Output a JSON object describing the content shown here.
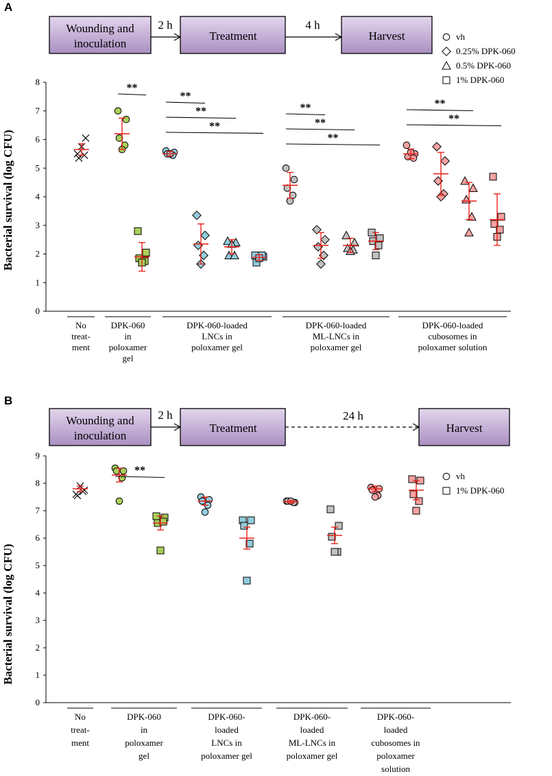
{
  "panels": [
    {
      "letter": "A",
      "workflow": {
        "steps": [
          "Wounding and inoculation",
          "Treatment",
          "Harvest"
        ],
        "intervals": [
          "2 h",
          "4 h"
        ]
      },
      "legend": [
        "vh",
        "0.25% DPK-060",
        "0.5% DPK-060",
        "1% DPK-060"
      ],
      "significance": "**",
      "group_labels": [
        [
          "No",
          "treat-",
          "ment"
        ],
        [
          "DPK-060",
          "in",
          "poloxamer",
          "gel"
        ],
        [
          "DPK-060-loaded",
          "LNCs in",
          "poloxamer gel"
        ],
        [
          "DPK-060-loaded",
          "ML-LNCs in",
          "poloxamer gel"
        ],
        [
          "DPK-060-loaded",
          "cubosomes in",
          "poloxamer solution"
        ]
      ]
    },
    {
      "letter": "B",
      "workflow": {
        "steps": [
          "Wounding and inoculation",
          "Treatment",
          "Harvest"
        ],
        "intervals": [
          "2 h",
          "24 h"
        ]
      },
      "legend": [
        "vh",
        "1% DPK-060"
      ],
      "significance": "**",
      "group_labels": [
        [
          "No",
          "treat-",
          "ment"
        ],
        [
          "DPK-060",
          "in",
          "poloxamer",
          "gel"
        ],
        [
          "DPK-060-",
          "loaded",
          "LNCs in",
          "poloxamer gel"
        ],
        [
          "DPK-060-",
          "loaded",
          "ML-LNCs in",
          "poloxamer gel"
        ],
        [
          "DPK-060-",
          "loaded",
          "cubosomes in",
          "poloxamer",
          "solution"
        ]
      ]
    }
  ],
  "chart_data": [
    {
      "type": "scatter",
      "title": "",
      "ylabel": "Bacterial survival  (log CFU)",
      "ylim": [
        0,
        8
      ],
      "yticks": [
        0,
        1,
        2,
        3,
        4,
        5,
        6,
        7,
        8
      ],
      "series": [
        {
          "name": "No treatment",
          "group": 0,
          "marker": "x",
          "fill": "none",
          "values": [
            5.5,
            6.05,
            5.35,
            5.45,
            5.75
          ],
          "mean": 5.65,
          "sd": 0.2
        },
        {
          "name": "DPK-060 in poloxamer gel / vh",
          "group": 1,
          "marker": "circle",
          "fill": "#a8cf5a",
          "values": [
            7.0,
            6.7,
            6.05,
            5.8,
            5.65
          ],
          "mean": 6.2,
          "sd": 0.55
        },
        {
          "name": "DPK-060 in poloxamer gel / 1% DPK-060",
          "group": 1,
          "marker": "square",
          "fill": "#a8cf5a",
          "values": [
            2.8,
            2.05,
            1.85,
            1.75,
            1.7
          ],
          "mean": 1.9,
          "sd": 0.5
        },
        {
          "name": "LNCs / vh",
          "group": 2,
          "marker": "circle",
          "fill": "#92cddc",
          "values": [
            5.6,
            5.55,
            5.5,
            5.45,
            5.5
          ],
          "mean": 5.5,
          "sd": 0.08
        },
        {
          "name": "LNCs / 0.25% DPK-060",
          "group": 2,
          "marker": "diamond",
          "fill": "#92cddc",
          "values": [
            3.35,
            2.65,
            2.3,
            1.95,
            1.65
          ],
          "mean": 2.35,
          "sd": 0.7
        },
        {
          "name": "LNCs / 0.5% DPK-060",
          "group": 2,
          "marker": "triangle",
          "fill": "#92cddc",
          "values": [
            2.45,
            2.4,
            1.95,
            1.95,
            2.35
          ],
          "mean": 2.25,
          "sd": 0.25
        },
        {
          "name": "LNCs / 1% DPK-060",
          "group": 2,
          "marker": "square",
          "fill": "#92cddc",
          "values": [
            1.95,
            1.9,
            1.7,
            1.95,
            1.85
          ],
          "mean": 1.88,
          "sd": 0.1
        },
        {
          "name": "ML-LNCs / vh",
          "group": 3,
          "marker": "circle",
          "fill": "#c0c0c0",
          "values": [
            5.0,
            4.6,
            4.3,
            4.05,
            3.85
          ],
          "mean": 4.4,
          "sd": 0.45
        },
        {
          "name": "ML-LNCs / 0.25% DPK-060",
          "group": 3,
          "marker": "diamond",
          "fill": "#c0c0c0",
          "values": [
            2.85,
            2.5,
            2.25,
            1.95,
            1.65
          ],
          "mean": 2.3,
          "sd": 0.45
        },
        {
          "name": "ML-LNCs / 0.5% DPK-060",
          "group": 3,
          "marker": "triangle",
          "fill": "#c0c0c0",
          "values": [
            2.65,
            2.4,
            2.2,
            2.15,
            2.1
          ],
          "mean": 2.3,
          "sd": 0.25
        },
        {
          "name": "ML-LNCs / 1% DPK-060",
          "group": 3,
          "marker": "square",
          "fill": "#c0c0c0",
          "values": [
            2.75,
            2.55,
            2.45,
            2.3,
            1.95
          ],
          "mean": 2.45,
          "sd": 0.3
        },
        {
          "name": "cubosomes / vh",
          "group": 4,
          "marker": "circle",
          "fill": "#f2a2a2",
          "values": [
            5.8,
            5.5,
            5.4,
            5.35,
            5.55
          ],
          "mean": 5.5,
          "sd": 0.17
        },
        {
          "name": "cubosomes / 0.25% DPK-060",
          "group": 4,
          "marker": "diamond",
          "fill": "#f2a2a2",
          "values": [
            5.75,
            5.25,
            4.55,
            4.1,
            4.0
          ],
          "mean": 4.8,
          "sd": 0.75
        },
        {
          "name": "cubosomes / 0.5% DPK-060",
          "group": 4,
          "marker": "triangle",
          "fill": "#f2a2a2",
          "values": [
            4.55,
            4.3,
            3.9,
            3.3,
            2.75
          ],
          "mean": 3.85,
          "sd": 0.65
        },
        {
          "name": "cubosomes / 1% DPK-060",
          "group": 4,
          "marker": "square",
          "fill": "#f2a2a2",
          "values": [
            4.7,
            3.3,
            3.05,
            2.85,
            2.6
          ],
          "mean": 3.2,
          "sd": 0.9
        }
      ],
      "significance_brackets": [
        {
          "group": 1,
          "from": 0,
          "to": 1,
          "slots": 2
        },
        {
          "group": 2,
          "from": 0,
          "to": 1,
          "slots": 4
        },
        {
          "group": 2,
          "from": 0,
          "to": 2,
          "slots": 4
        },
        {
          "group": 2,
          "from": 0,
          "to": 3,
          "slots": 4
        },
        {
          "group": 3,
          "from": 0,
          "to": 1,
          "slots": 4
        },
        {
          "group": 3,
          "from": 0,
          "to": 2,
          "slots": 4
        },
        {
          "group": 3,
          "from": 0,
          "to": 3,
          "slots": 4
        },
        {
          "group": 4,
          "from": 0,
          "to": 2,
          "slots": 4
        },
        {
          "group": 4,
          "from": 0,
          "to": 3,
          "slots": 4
        }
      ]
    },
    {
      "type": "scatter",
      "title": "",
      "ylabel": "Bacterial survival  (log CFU)",
      "ylim": [
        0,
        9
      ],
      "yticks": [
        0,
        1,
        2,
        3,
        4,
        5,
        6,
        7,
        8,
        9
      ],
      "series": [
        {
          "name": "No treatment",
          "group": 0,
          "marker": "x",
          "fill": "none",
          "values": [
            7.6,
            7.75,
            7.55,
            7.7,
            7.9
          ],
          "mean": 7.8,
          "sd": 0.1
        },
        {
          "name": "DPK-060 in poloxamer gel / vh",
          "group": 1,
          "marker": "circle",
          "fill": "#a8cf5a",
          "values": [
            8.55,
            8.45,
            8.45,
            8.2,
            7.35
          ],
          "mean": 8.3,
          "sd": 0.25
        },
        {
          "name": "DPK-060 in poloxamer gel / 1% DPK-060",
          "group": 1,
          "marker": "square",
          "fill": "#a8cf5a",
          "values": [
            6.8,
            6.75,
            6.55,
            6.6,
            5.55
          ],
          "mean": 6.55,
          "sd": 0.25
        },
        {
          "name": "LNCs / vh",
          "group": 2,
          "marker": "circle",
          "fill": "#92cddc",
          "values": [
            7.5,
            7.4,
            7.35,
            7.2,
            6.95
          ],
          "mean": 7.35,
          "sd": 0.15
        },
        {
          "name": "LNCs / 1% DPK-060",
          "group": 2,
          "marker": "square",
          "fill": "#92cddc",
          "values": [
            6.65,
            6.65,
            6.45,
            5.8,
            4.45
          ],
          "mean": 6.0,
          "sd": 0.4
        },
        {
          "name": "ML-LNCs / vh",
          "group": 3,
          "marker": "circle",
          "fill": "#c0c0c0",
          "values": [
            7.35,
            7.3,
            7.35,
            7.3,
            7.35
          ],
          "mean": 7.33,
          "sd": 0.05
        },
        {
          "name": "ML-LNCs / 1% DPK-060",
          "group": 3,
          "marker": "square",
          "fill": "#c0c0c0",
          "values": [
            7.05,
            6.45,
            6.05,
            5.5,
            5.5
          ],
          "mean": 6.1,
          "sd": 0.3
        },
        {
          "name": "cubosomes / vh",
          "group": 4,
          "marker": "circle",
          "fill": "#f2a2a2",
          "values": [
            7.85,
            7.8,
            7.75,
            7.55,
            7.5
          ],
          "mean": 7.8,
          "sd": 0.1
        },
        {
          "name": "cubosomes / 1% DPK-060",
          "group": 4,
          "marker": "square",
          "fill": "#f2a2a2",
          "values": [
            8.15,
            8.1,
            7.6,
            7.35,
            7.0
          ],
          "mean": 7.75,
          "sd": 0.35
        }
      ],
      "significance_brackets": [
        {
          "group": 1,
          "from": 0,
          "to": 1,
          "slots": 2
        }
      ]
    }
  ]
}
